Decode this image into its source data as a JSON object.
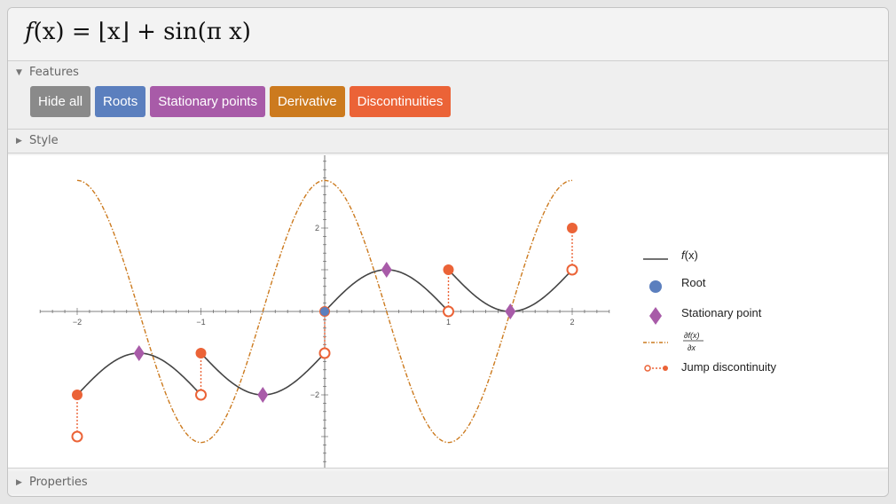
{
  "title": {
    "f": "f",
    "paren_x": "(x)",
    "eq": "=",
    "rhs": "⌊x⌋ + sin(π x)"
  },
  "features": {
    "label": "Features",
    "buttons": [
      {
        "label": "Hide all",
        "color": "#8a8a8a"
      },
      {
        "label": "Roots",
        "color": "#5b7fbe"
      },
      {
        "label": "Stationary points",
        "color": "#a85ba8"
      },
      {
        "label": "Derivative",
        "color": "#cc7a1e"
      },
      {
        "label": "Discontinuities",
        "color": "#eb6337"
      }
    ]
  },
  "style": {
    "label": "Style"
  },
  "properties": {
    "label": "Properties"
  },
  "chart_data": {
    "type": "line",
    "xlim": [
      -2.3,
      2.3
    ],
    "ylim": [
      -3.7,
      3.7
    ],
    "x_ticks": [
      -2,
      -1,
      1,
      2
    ],
    "y_ticks": [
      2,
      -2
    ],
    "series": [
      {
        "name": "f(x)",
        "expr": "floor(x) + sin(pi*x)",
        "color": "#444444"
      },
      {
        "name": "∂f(x)/∂x",
        "expr": "pi*cos(pi*x)",
        "color": "#cc7a1e"
      }
    ],
    "roots": [
      [
        0,
        0
      ],
      [
        1.5,
        0
      ]
    ],
    "stationary_points": [
      [
        -1.5,
        -1
      ],
      [
        -0.5,
        -2
      ],
      [
        0.5,
        1
      ],
      [
        1.5,
        0
      ]
    ],
    "jumps": [
      {
        "x": -2,
        "filled": -2,
        "open": -3
      },
      {
        "x": -1,
        "filled": -1,
        "open": -2
      },
      {
        "x": 0,
        "filled": 0,
        "open": -1
      },
      {
        "x": 1,
        "filled": 1,
        "open": 0
      },
      {
        "x": 2,
        "filled": 2,
        "open": 1
      }
    ],
    "legend": {
      "placement": "right",
      "entries": [
        {
          "label_f": "f",
          "label_rest": "(x)"
        },
        {
          "label": "Root"
        },
        {
          "label": "Stationary point"
        },
        {
          "label_num": "∂f(x)",
          "label_den": "∂x"
        },
        {
          "label": "Jump discontinuity"
        }
      ]
    },
    "colors": {
      "root": "#5b7fbe",
      "stationary": "#a85ba8",
      "jump": "#eb6337",
      "axis": "#555555"
    }
  }
}
